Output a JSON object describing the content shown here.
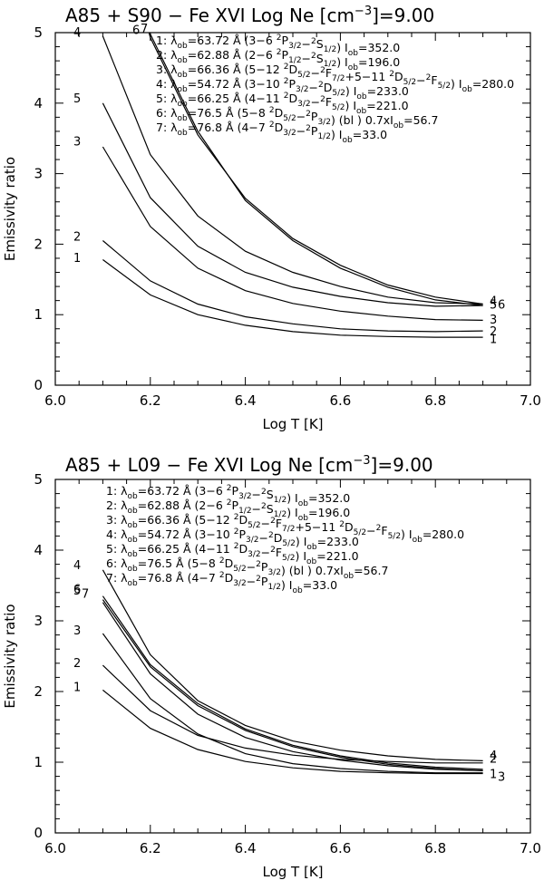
{
  "chart_data": [
    {
      "type": "line",
      "title_prefix": "A85 + S90 −   Fe XVI   Log Ne",
      "title_unit_open": "[cm",
      "title_unit_exp": "−3",
      "title_unit_close": "]=9.00",
      "xlabel": "Log T [K]",
      "ylabel": "Emissivity ratio",
      "xlim": [
        6.0,
        7.0
      ],
      "ylim": [
        0,
        5
      ],
      "xticks": [
        "6.0",
        "6.2",
        "6.4",
        "6.6",
        "6.8",
        "7.0"
      ],
      "yticks": [
        "0",
        "1",
        "2",
        "3",
        "4",
        "5"
      ],
      "x": [
        6.1,
        6.2,
        6.3,
        6.4,
        6.5,
        6.6,
        6.7,
        6.8,
        6.9
      ],
      "series": [
        {
          "name": "1",
          "values": [
            1.78,
            1.28,
            1.0,
            0.85,
            0.76,
            0.71,
            0.69,
            0.68,
            0.68
          ]
        },
        {
          "name": "2",
          "values": [
            2.05,
            1.48,
            1.15,
            0.97,
            0.87,
            0.8,
            0.77,
            0.76,
            0.77
          ]
        },
        {
          "name": "3",
          "values": [
            3.38,
            2.25,
            1.66,
            1.34,
            1.16,
            1.05,
            0.98,
            0.93,
            0.92
          ]
        },
        {
          "name": "4",
          "values": [
            4.95,
            3.27,
            2.4,
            1.9,
            1.6,
            1.4,
            1.25,
            1.17,
            1.15
          ]
        },
        {
          "name": "5",
          "values": [
            4.0,
            2.66,
            1.97,
            1.6,
            1.39,
            1.26,
            1.17,
            1.12,
            1.13
          ]
        },
        {
          "name": "6",
          "values": [
            7.4,
            4.93,
            3.55,
            2.65,
            2.08,
            1.7,
            1.42,
            1.25,
            1.15
          ]
        },
        {
          "name": "7",
          "values": [
            7.5,
            4.98,
            3.6,
            2.62,
            2.05,
            1.66,
            1.39,
            1.21,
            1.13
          ]
        }
      ],
      "left_labels": [
        {
          "text": "4",
          "y": 5.0
        },
        {
          "text": "6",
          "y": 5.03
        },
        {
          "text": "7",
          "y": 5.05
        },
        {
          "text": "5",
          "y": 4.06
        },
        {
          "text": "3",
          "y": 3.45
        },
        {
          "text": "2",
          "y": 2.1
        },
        {
          "text": "1",
          "y": 1.8
        }
      ],
      "right_labels": [
        {
          "text": "4",
          "y": 1.2
        },
        {
          "text": "5",
          "y": 1.15
        },
        {
          "text": "6",
          "y": 1.15
        },
        {
          "text": "3",
          "y": 0.94
        },
        {
          "text": "2",
          "y": 0.77
        },
        {
          "text": "1",
          "y": 0.66
        }
      ],
      "legend": [
        {
          "num": "1:",
          "lam": "63.72",
          "trans": "(3−6",
          "lower": "2P3/2",
          "upper": "2S1/2",
          "iob": "352.0"
        },
        {
          "num": "2:",
          "lam": "62.88",
          "trans": "(2−6",
          "lower": "2P1/2",
          "upper": "2S1/2",
          "iob": "196.0"
        },
        {
          "num": "3:",
          "lam": "66.36",
          "trans": "(5−12",
          "lower": "2D5/2",
          "upper": "2F7/2+5−11 2D5/2−2F5/2",
          "iob": "280.0"
        },
        {
          "num": "4:",
          "lam": "54.72",
          "trans": "(3−10",
          "lower": "2P3/2",
          "upper": "2D5/2",
          "iob": "233.0"
        },
        {
          "num": "5:",
          "lam": "66.25",
          "trans": "(4−11",
          "lower": "2D3/2",
          "upper": "2F5/2",
          "iob": "221.0"
        },
        {
          "num": "6:",
          "lam": "76.5",
          "trans": "(5−8",
          "lower": "2D5/2",
          "upper": "2P3/2",
          "note": "(bl ) 0.7xI",
          "iob": "56.7"
        },
        {
          "num": "7:",
          "lam": "76.8",
          "trans": "(4−7",
          "lower": "2D3/2",
          "upper": "2P1/2",
          "iob": "33.0"
        }
      ]
    },
    {
      "type": "line",
      "title_prefix": "A85 + L09 −   Fe XVI   Log Ne",
      "title_unit_open": "[cm",
      "title_unit_exp": "−3",
      "title_unit_close": "]=9.00",
      "xlabel": "Log T [K]",
      "ylabel": "Emissivity ratio",
      "xlim": [
        6.0,
        7.0
      ],
      "ylim": [
        0,
        5
      ],
      "xticks": [
        "6.0",
        "6.2",
        "6.4",
        "6.6",
        "6.8",
        "7.0"
      ],
      "yticks": [
        "0",
        "1",
        "2",
        "3",
        "4",
        "5"
      ],
      "x": [
        6.1,
        6.2,
        6.3,
        6.4,
        6.5,
        6.6,
        6.7,
        6.8,
        6.9
      ],
      "series": [
        {
          "name": "1",
          "values": [
            2.02,
            1.48,
            1.18,
            1.01,
            0.92,
            0.87,
            0.85,
            0.84,
            0.84
          ]
        },
        {
          "name": "2",
          "values": [
            2.37,
            1.73,
            1.38,
            1.2,
            1.1,
            1.04,
            1.01,
            0.99,
            0.99
          ]
        },
        {
          "name": "3",
          "values": [
            2.82,
            1.9,
            1.4,
            1.12,
            0.98,
            0.91,
            0.87,
            0.85,
            0.85
          ]
        },
        {
          "name": "4",
          "values": [
            3.72,
            2.52,
            1.87,
            1.52,
            1.3,
            1.17,
            1.09,
            1.04,
            1.02
          ]
        },
        {
          "name": "5",
          "values": [
            3.35,
            2.38,
            1.83,
            1.47,
            1.24,
            1.09,
            0.99,
            0.93,
            0.9
          ]
        },
        {
          "name": "6",
          "values": [
            3.3,
            2.35,
            1.8,
            1.45,
            1.22,
            1.07,
            0.97,
            0.91,
            0.88
          ]
        },
        {
          "name": "7",
          "values": [
            3.26,
            2.25,
            1.68,
            1.35,
            1.15,
            1.03,
            0.95,
            0.9,
            0.88
          ]
        }
      ],
      "left_labels": [
        {
          "text": "4",
          "y": 3.78
        },
        {
          "text": "5",
          "y": 3.42
        },
        {
          "text": "6",
          "y": 3.44
        },
        {
          "text": "7",
          "y": 3.38
        },
        {
          "text": "3",
          "y": 2.86
        },
        {
          "text": "2",
          "y": 2.4
        },
        {
          "text": "1",
          "y": 2.06
        }
      ],
      "right_labels": [
        {
          "text": "2",
          "y": 1.06
        },
        {
          "text": "4",
          "y": 1.1
        },
        {
          "text": "1",
          "y": 0.84
        },
        {
          "text": "3",
          "y": 0.8
        }
      ],
      "legend": [
        {
          "num": "1:",
          "lam": "63.72",
          "trans": "(3−6",
          "lower": "2P3/2",
          "upper": "2S1/2",
          "iob": "352.0"
        },
        {
          "num": "2:",
          "lam": "62.88",
          "trans": "(2−6",
          "lower": "2P1/2",
          "upper": "2S1/2",
          "iob": "196.0"
        },
        {
          "num": "3:",
          "lam": "66.36",
          "trans": "(5−12",
          "lower": "2D5/2",
          "upper": "2F7/2+5−11 2D5/2−2F5/2",
          "iob": "280.0"
        },
        {
          "num": "4:",
          "lam": "54.72",
          "trans": "(3−10",
          "lower": "2P3/2",
          "upper": "2D5/2",
          "iob": "233.0"
        },
        {
          "num": "5:",
          "lam": "66.25",
          "trans": "(4−11",
          "lower": "2D3/2",
          "upper": "2F5/2",
          "iob": "221.0"
        },
        {
          "num": "6:",
          "lam": "76.5",
          "trans": "(5−8",
          "lower": "2D5/2",
          "upper": "2P3/2",
          "note": "(bl ) 0.7xI",
          "iob": "56.7"
        },
        {
          "num": "7:",
          "lam": "76.8",
          "trans": "(4−7",
          "lower": "2D3/2",
          "upper": "2P1/2",
          "iob": "33.0"
        }
      ]
    }
  ]
}
